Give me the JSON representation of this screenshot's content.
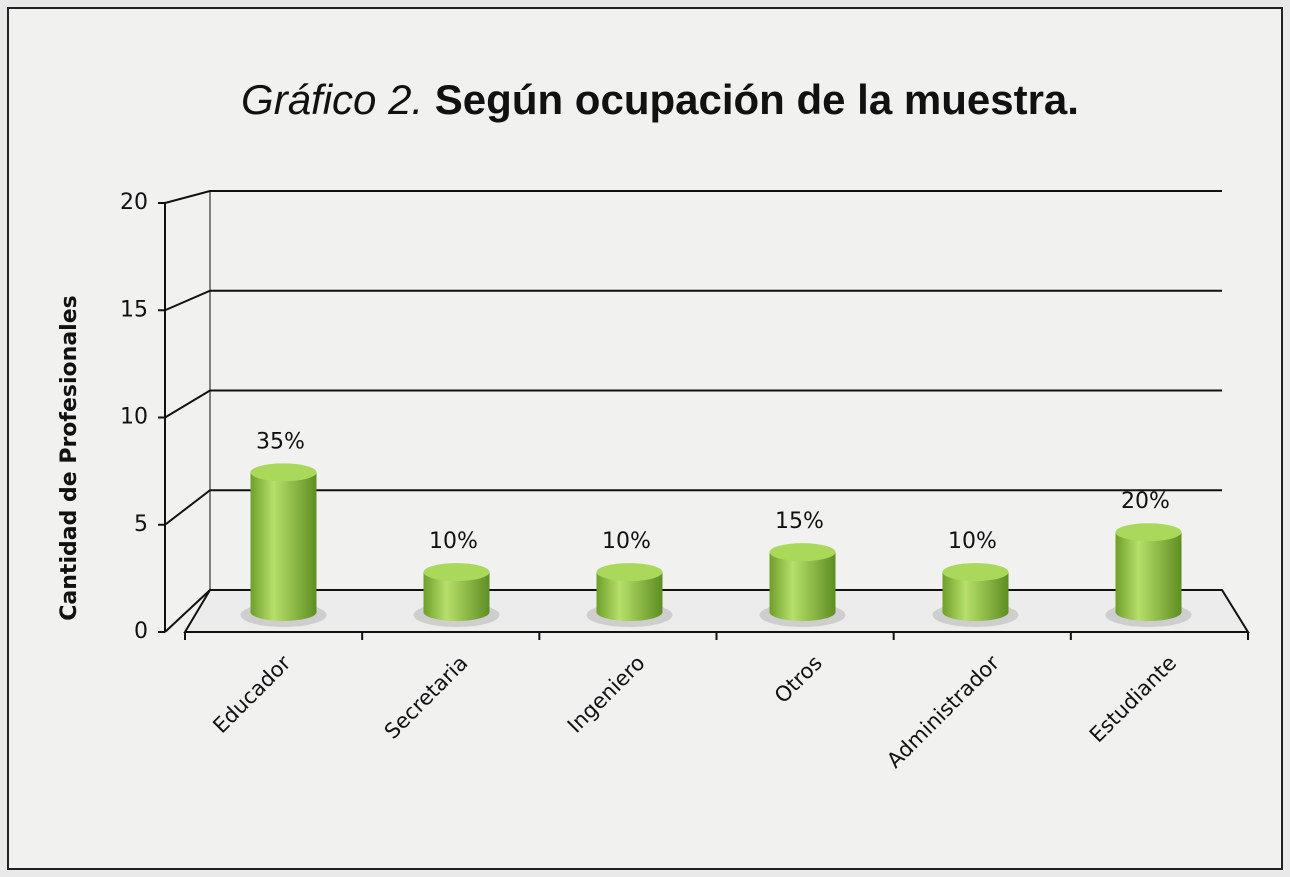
{
  "chart_data": {
    "type": "bar3d",
    "title_label": "Gráfico 2.",
    "title": "Según ocupación de la muestra.",
    "y_label": "Cantidad de Profesionales",
    "categories": [
      "Educador",
      "Secretaria",
      "Ingeniero",
      "Otros",
      "Administrador",
      "Estudiante"
    ],
    "values": [
      7,
      2,
      2,
      3,
      2,
      4
    ],
    "value_labels": [
      "35%",
      "10%",
      "10%",
      "15%",
      "10%",
      "20%"
    ],
    "color": "#8cc63f",
    "ylim": [
      0,
      20
    ],
    "yticks": [
      0,
      5,
      10,
      15,
      20
    ],
    "grid": true
  }
}
